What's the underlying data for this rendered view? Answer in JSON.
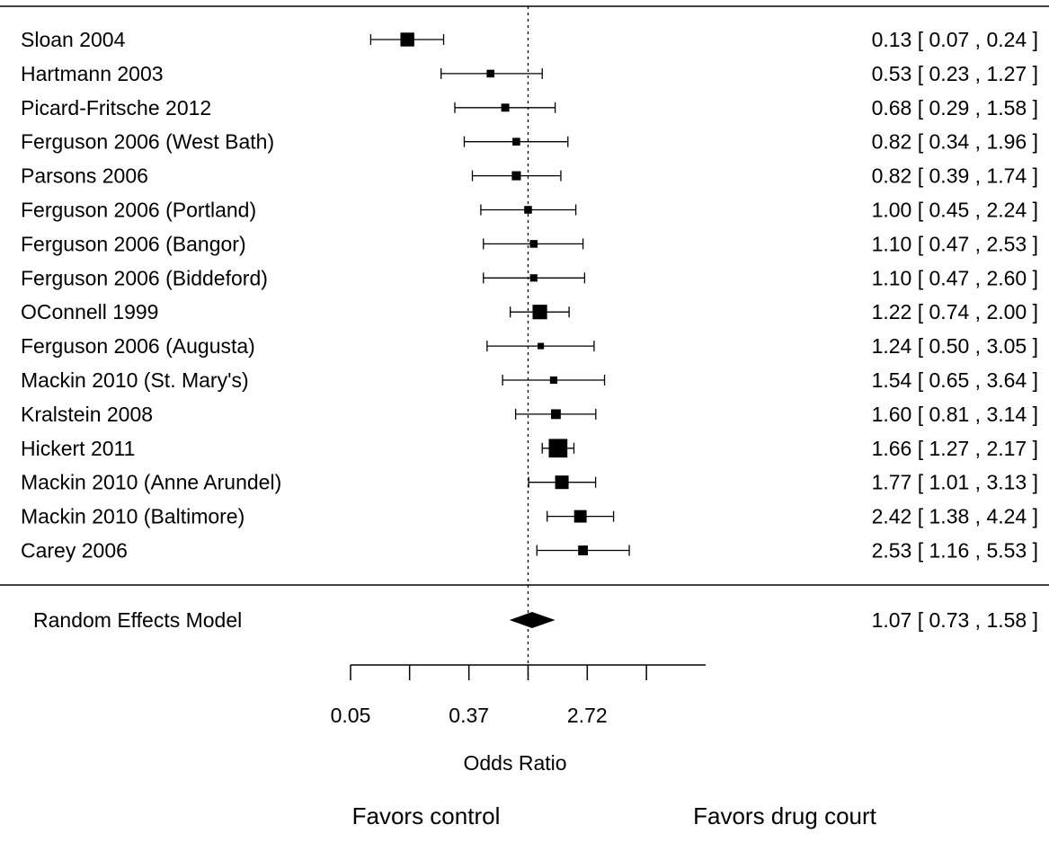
{
  "chart_data": {
    "type": "forest",
    "xlabel": "Odds Ratio",
    "x_scale": "log",
    "xlim": [
      0.0498,
      20.09
    ],
    "ticks": [
      0.0498,
      0.135,
      0.368,
      1.0,
      2.718,
      7.389
    ],
    "tick_labels": [
      "",
      "",
      "0.37",
      "",
      "2.72",
      ""
    ],
    "tick_label_05": "0.05",
    "reference_line": 1.0,
    "studies": [
      {
        "label": "Sloan 2004",
        "or": 0.13,
        "lo": 0.07,
        "hi": 0.24,
        "text": "0.13 [ 0.07 , 0.24 ]",
        "weight": 3
      },
      {
        "label": "Hartmann 2003",
        "or": 0.53,
        "lo": 0.23,
        "hi": 1.27,
        "text": "0.53 [ 0.23 , 1.27 ]",
        "weight": 1.2
      },
      {
        "label": "Picard-Fritsche 2012",
        "or": 0.68,
        "lo": 0.29,
        "hi": 1.58,
        "text": "0.68 [ 0.29 , 1.58 ]",
        "weight": 1.3
      },
      {
        "label": "Ferguson 2006 (West Bath)",
        "or": 0.82,
        "lo": 0.34,
        "hi": 1.96,
        "text": "0.82 [ 0.34 , 1.96 ]",
        "weight": 1.2
      },
      {
        "label": "Parsons 2006",
        "or": 0.82,
        "lo": 0.39,
        "hi": 1.74,
        "text": "0.82 [ 0.39 , 1.74 ]",
        "weight": 1.6
      },
      {
        "label": "Ferguson 2006 (Portland)",
        "or": 1.0,
        "lo": 0.45,
        "hi": 2.24,
        "text": "1.00 [ 0.45 , 2.24 ]",
        "weight": 1.2
      },
      {
        "label": "Ferguson 2006 (Bangor)",
        "or": 1.1,
        "lo": 0.47,
        "hi": 2.53,
        "text": "1.10 [ 0.47 , 2.53 ]",
        "weight": 1.2
      },
      {
        "label": "Ferguson 2006 (Biddeford)",
        "or": 1.1,
        "lo": 0.47,
        "hi": 2.6,
        "text": "1.10 [ 0.47 , 2.60 ]",
        "weight": 1.1
      },
      {
        "label": "OConnell 1999",
        "or": 1.22,
        "lo": 0.74,
        "hi": 2.0,
        "text": "1.22 [ 0.74 , 2.00 ]",
        "weight": 3.2
      },
      {
        "label": "Ferguson 2006 (Augusta)",
        "or": 1.24,
        "lo": 0.5,
        "hi": 3.05,
        "text": "1.24 [ 0.50 , 3.05 ]",
        "weight": 0.8
      },
      {
        "label": "Mackin 2010 (St. Mary's)",
        "or": 1.54,
        "lo": 0.65,
        "hi": 3.64,
        "text": "1.54 [ 0.65 , 3.64 ]",
        "weight": 1.1
      },
      {
        "label": "Kralstein 2008",
        "or": 1.6,
        "lo": 0.81,
        "hi": 3.14,
        "text": "1.60 [ 0.81 , 3.14 ]",
        "weight": 1.8
      },
      {
        "label": "Hickert 2011",
        "or": 1.66,
        "lo": 1.27,
        "hi": 2.17,
        "text": "1.66 [ 1.27 , 2.17 ]",
        "weight": 4.4
      },
      {
        "label": "Mackin 2010 (Anne Arundel)",
        "or": 1.77,
        "lo": 1.01,
        "hi": 3.13,
        "text": "1.77 [ 1.01 , 3.13 ]",
        "weight": 2.9
      },
      {
        "label": "Mackin 2010 (Baltimore)",
        "or": 2.42,
        "lo": 1.38,
        "hi": 4.24,
        "text": "2.42 [ 1.38 , 4.24 ]",
        "weight": 2.6
      },
      {
        "label": "Carey 2006",
        "or": 2.53,
        "lo": 1.16,
        "hi": 5.53,
        "text": "2.53 [ 1.16 , 5.53 ]",
        "weight": 1.8
      }
    ],
    "summary": {
      "label": "Random Effects Model",
      "or": 1.07,
      "lo": 0.73,
      "hi": 1.58,
      "text": "1.07 [ 0.73 , 1.58 ]"
    },
    "favors_left": "Favors control",
    "favors_right": "Favors drug court"
  }
}
